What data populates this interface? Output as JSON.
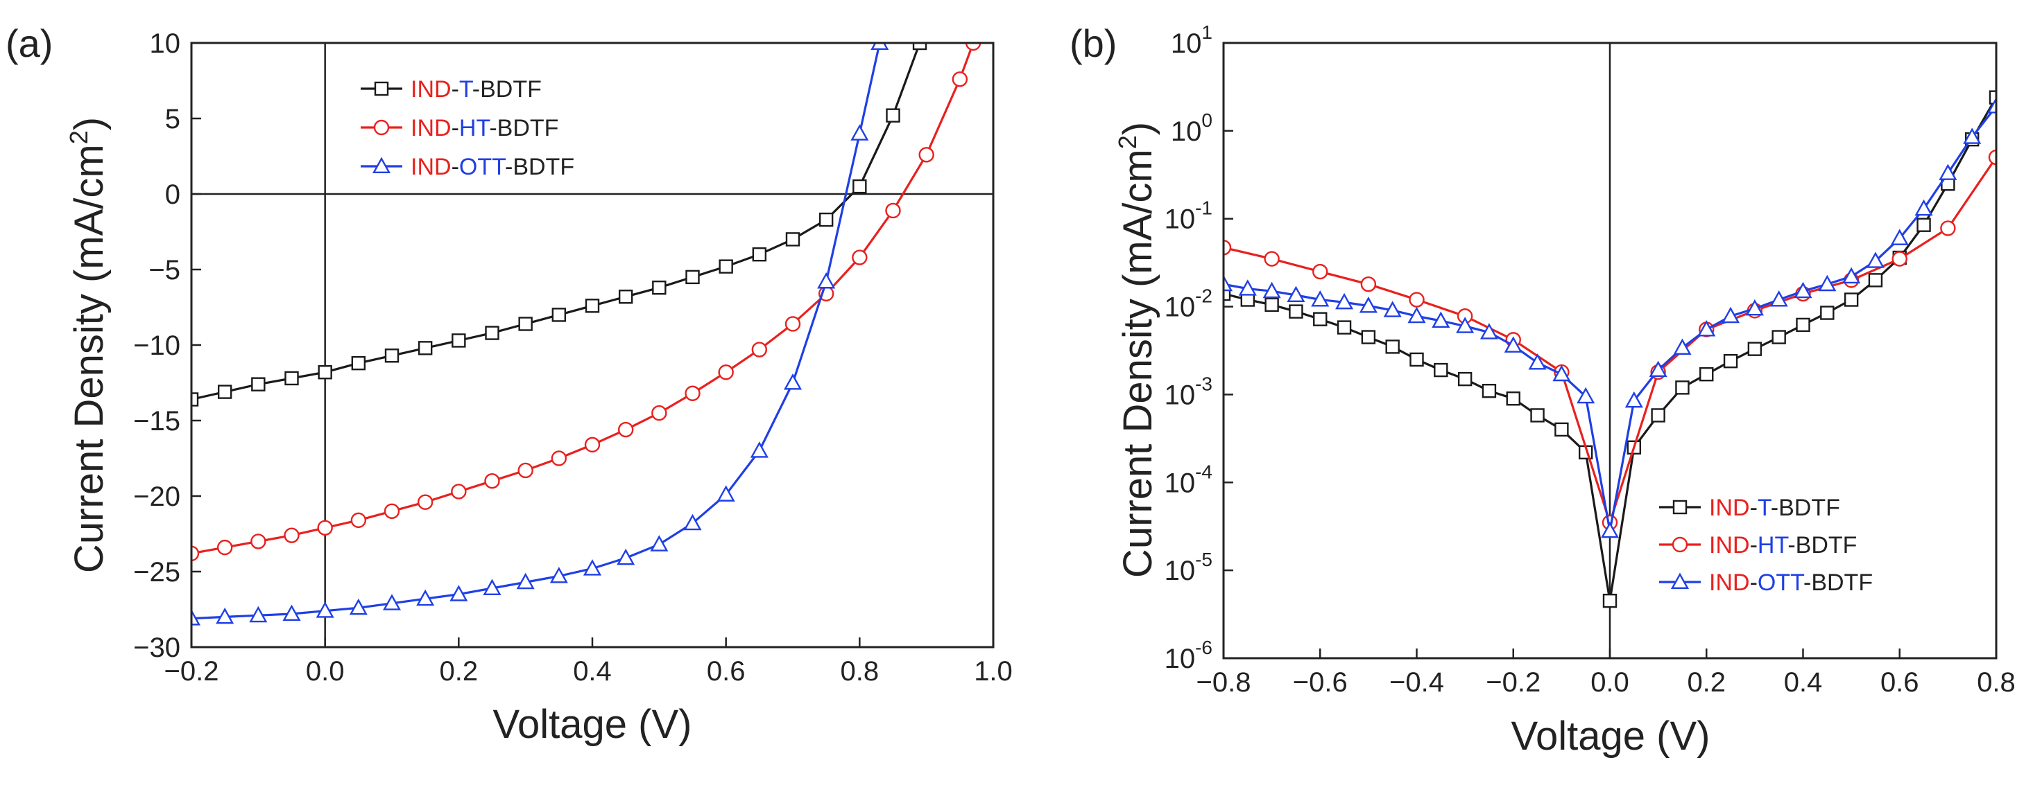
{
  "panel_a": {
    "label": "(a)",
    "xlabel": "Voltage (V)",
    "ylabel_pre": "Current Density (mA/cm",
    "ylabel_sup": "2",
    "ylabel_post": ")",
    "xticks": [
      "−0.2",
      "0.0",
      "0.2",
      "0.4",
      "0.6",
      "0.8",
      "1.0"
    ],
    "yticks": [
      "10",
      "5",
      "0",
      "−5",
      "−10",
      "−15",
      "−20",
      "−25",
      "−30"
    ]
  },
  "panel_b": {
    "label": "(b)",
    "xlabel": "Voltage (V)",
    "ylabel_pre": "Current Density (mA/cm",
    "ylabel_sup": "2",
    "ylabel_post": ")",
    "xticks": [
      "−0.8",
      "−0.6",
      "−0.4",
      "−0.2",
      "0.0",
      "0.2",
      "0.4",
      "0.6",
      "0.8"
    ],
    "yticks": [
      {
        "base": "10",
        "exp": "1"
      },
      {
        "base": "10",
        "exp": "0"
      },
      {
        "base": "10",
        "exp": "-1"
      },
      {
        "base": "10",
        "exp": "-2"
      },
      {
        "base": "10",
        "exp": "-3"
      },
      {
        "base": "10",
        "exp": "-4"
      },
      {
        "base": "10",
        "exp": "-5"
      },
      {
        "base": "10",
        "exp": "-6"
      }
    ]
  },
  "legend": [
    {
      "marker": "square",
      "color": "#1a1a1a",
      "parts": [
        {
          "t": "IND",
          "c": "#e8211e"
        },
        {
          "t": "-",
          "c": "#222222"
        },
        {
          "t": "T",
          "c": "#1f3fe6"
        },
        {
          "t": "-BDTF",
          "c": "#222222"
        }
      ]
    },
    {
      "marker": "circle",
      "color": "#e8211e",
      "parts": [
        {
          "t": "IND",
          "c": "#e8211e"
        },
        {
          "t": "-",
          "c": "#222222"
        },
        {
          "t": "HT",
          "c": "#1f3fe6"
        },
        {
          "t": "-BDTF",
          "c": "#222222"
        }
      ]
    },
    {
      "marker": "triangle",
      "color": "#1f3fe6",
      "parts": [
        {
          "t": "IND",
          "c": "#e8211e"
        },
        {
          "t": "-",
          "c": "#222222"
        },
        {
          "t": "OTT",
          "c": "#1f3fe6"
        },
        {
          "t": "-BDTF",
          "c": "#222222"
        }
      ]
    }
  ],
  "chart_data": [
    {
      "type": "line",
      "title": "(a)",
      "xlabel": "Voltage (V)",
      "ylabel": "Current Density (mA/cm2)",
      "xlim": [
        -0.2,
        1.0
      ],
      "ylim": [
        -30,
        10
      ],
      "grid": false,
      "legend_position": "top-left",
      "series": [
        {
          "name": "IND-T-BDTF",
          "color": "#1a1a1a",
          "marker": "square",
          "x": [
            -0.2,
            -0.15,
            -0.1,
            -0.05,
            0.0,
            0.05,
            0.1,
            0.15,
            0.2,
            0.25,
            0.3,
            0.35,
            0.4,
            0.45,
            0.5,
            0.55,
            0.6,
            0.65,
            0.7,
            0.75,
            0.8,
            0.85,
            0.89
          ],
          "y": [
            -13.6,
            -13.1,
            -12.6,
            -12.2,
            -11.8,
            -11.2,
            -10.7,
            -10.2,
            -9.7,
            -9.2,
            -8.6,
            -8.0,
            -7.4,
            -6.8,
            -6.2,
            -5.5,
            -4.8,
            -4.0,
            -3.0,
            -1.7,
            0.5,
            5.2,
            10.0
          ]
        },
        {
          "name": "IND-HT-BDTF",
          "color": "#e8211e",
          "marker": "circle",
          "x": [
            -0.2,
            -0.15,
            -0.1,
            -0.05,
            0.0,
            0.05,
            0.1,
            0.15,
            0.2,
            0.25,
            0.3,
            0.35,
            0.4,
            0.45,
            0.5,
            0.55,
            0.6,
            0.65,
            0.7,
            0.75,
            0.8,
            0.85,
            0.9,
            0.95,
            0.97
          ],
          "y": [
            -23.8,
            -23.4,
            -23.0,
            -22.6,
            -22.1,
            -21.6,
            -21.0,
            -20.4,
            -19.7,
            -19.0,
            -18.3,
            -17.5,
            -16.6,
            -15.6,
            -14.5,
            -13.2,
            -11.8,
            -10.3,
            -8.6,
            -6.6,
            -4.2,
            -1.1,
            2.6,
            7.6,
            10.0
          ]
        },
        {
          "name": "IND-OTT-BDTF",
          "color": "#1f3fe6",
          "marker": "triangle",
          "x": [
            -0.2,
            -0.15,
            -0.1,
            -0.05,
            0.0,
            0.05,
            0.1,
            0.15,
            0.2,
            0.25,
            0.3,
            0.35,
            0.4,
            0.45,
            0.5,
            0.55,
            0.6,
            0.65,
            0.7,
            0.75,
            0.8,
            0.83
          ],
          "y": [
            -28.1,
            -28.0,
            -27.9,
            -27.8,
            -27.6,
            -27.4,
            -27.1,
            -26.8,
            -26.5,
            -26.1,
            -25.7,
            -25.3,
            -24.8,
            -24.1,
            -23.2,
            -21.8,
            -19.9,
            -17.0,
            -12.5,
            -5.8,
            4.0,
            10.0
          ]
        }
      ]
    },
    {
      "type": "line",
      "title": "(b)",
      "xlabel": "Voltage (V)",
      "ylabel": "Current Density (mA/cm2)",
      "xlim": [
        -0.8,
        0.8
      ],
      "ylim": [
        1e-06,
        10
      ],
      "yscale": "log",
      "grid": false,
      "legend_position": "bottom-right",
      "series": [
        {
          "name": "IND-T-BDTF",
          "color": "#1a1a1a",
          "marker": "square",
          "x": [
            -0.8,
            -0.75,
            -0.7,
            -0.65,
            -0.6,
            -0.55,
            -0.5,
            -0.45,
            -0.4,
            -0.35,
            -0.3,
            -0.25,
            -0.2,
            -0.15,
            -0.1,
            -0.05,
            0.0,
            0.05,
            0.1,
            0.15,
            0.2,
            0.25,
            0.3,
            0.35,
            0.4,
            0.45,
            0.5,
            0.55,
            0.6,
            0.65,
            0.7,
            0.75,
            0.8
          ],
          "y": [
            0.014,
            0.012,
            0.0105,
            0.0088,
            0.0072,
            0.0058,
            0.0045,
            0.0035,
            0.0025,
            0.0019,
            0.0015,
            0.0011,
            0.0009,
            0.00058,
            0.0004,
            0.00022,
            4.5e-06,
            0.00025,
            0.00058,
            0.0012,
            0.0017,
            0.0024,
            0.0033,
            0.0045,
            0.0062,
            0.0085,
            0.012,
            0.02,
            0.036,
            0.085,
            0.25,
            0.8,
            2.4
          ]
        },
        {
          "name": "IND-HT-BDTF",
          "color": "#e8211e",
          "marker": "circle",
          "x": [
            -0.8,
            -0.7,
            -0.6,
            -0.5,
            -0.4,
            -0.3,
            -0.2,
            -0.1,
            0.0,
            0.1,
            0.2,
            0.3,
            0.4,
            0.5,
            0.6,
            0.7,
            0.8
          ],
          "y": [
            0.047,
            0.035,
            0.025,
            0.018,
            0.012,
            0.0078,
            0.0042,
            0.0018,
            3.5e-05,
            0.0018,
            0.0055,
            0.009,
            0.014,
            0.02,
            0.035,
            0.078,
            0.5
          ]
        },
        {
          "name": "IND-OTT-BDTF",
          "color": "#1f3fe6",
          "marker": "triangle",
          "x": [
            -0.8,
            -0.75,
            -0.7,
            -0.65,
            -0.6,
            -0.55,
            -0.5,
            -0.45,
            -0.4,
            -0.35,
            -0.3,
            -0.25,
            -0.2,
            -0.15,
            -0.1,
            -0.05,
            0.0,
            0.05,
            0.1,
            0.15,
            0.2,
            0.25,
            0.3,
            0.35,
            0.4,
            0.45,
            0.5,
            0.55,
            0.6,
            0.65,
            0.7,
            0.75,
            0.8
          ],
          "y": [
            0.018,
            0.016,
            0.015,
            0.0135,
            0.012,
            0.0112,
            0.0102,
            0.0091,
            0.0078,
            0.0069,
            0.006,
            0.0051,
            0.0036,
            0.0023,
            0.0017,
            0.00095,
            2.8e-05,
            0.00085,
            0.0019,
            0.0034,
            0.0055,
            0.0078,
            0.0095,
            0.012,
            0.015,
            0.018,
            0.022,
            0.033,
            0.06,
            0.13,
            0.33,
            0.85,
            1.9
          ]
        }
      ]
    }
  ]
}
